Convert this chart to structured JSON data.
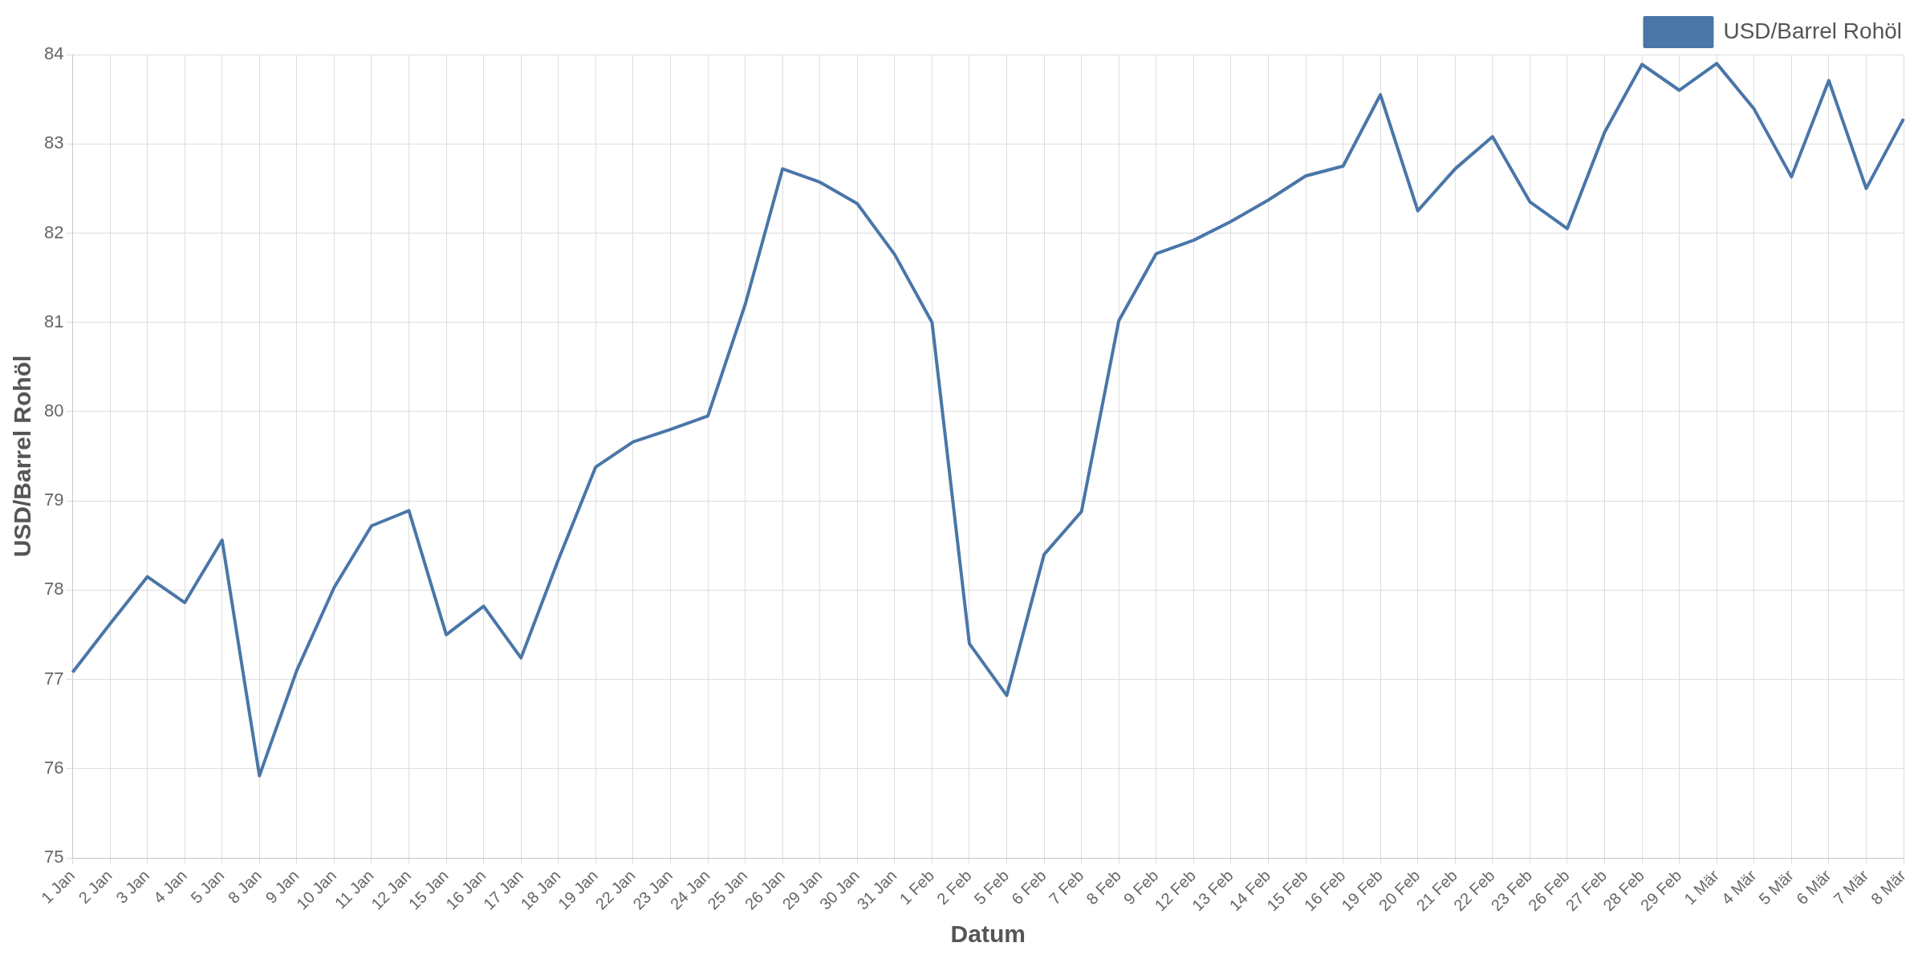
{
  "chart_data": {
    "type": "line",
    "xlabel": "Datum",
    "ylabel": "USD/Barrel Rohöl",
    "categories": [
      "1 Jan",
      "2 Jan",
      "3 Jan",
      "4 Jan",
      "5 Jan",
      "8 Jan",
      "9 Jan",
      "10 Jan",
      "11 Jan",
      "12 Jan",
      "15 Jan",
      "16 Jan",
      "17 Jan",
      "18 Jan",
      "19 Jan",
      "22 Jan",
      "23 Jan",
      "24 Jan",
      "25 Jan",
      "26 Jan",
      "29 Jan",
      "30 Jan",
      "31 Jan",
      "1 Feb",
      "2 Feb",
      "5 Feb",
      "6 Feb",
      "7 Feb",
      "8 Feb",
      "9 Feb",
      "12 Feb",
      "13 Feb",
      "14 Feb",
      "15 Feb",
      "16 Feb",
      "19 Feb",
      "20 Feb",
      "21 Feb",
      "22 Feb",
      "23 Feb",
      "26 Feb",
      "27 Feb",
      "28 Feb",
      "29 Feb",
      "1 Mär",
      "4 Mär",
      "5 Mär",
      "6 Mär",
      "7 Mär",
      "8 Mär"
    ],
    "series": [
      {
        "name": "USD/Barrel Rohöl",
        "color": "#4a76a8",
        "values": [
          77.08,
          77.62,
          78.15,
          77.86,
          78.56,
          75.92,
          77.1,
          78.03,
          78.72,
          78.89,
          77.5,
          77.82,
          77.24,
          78.34,
          79.38,
          79.66,
          79.8,
          79.95,
          81.2,
          82.72,
          82.57,
          82.33,
          81.76,
          81.0,
          77.4,
          76.82,
          78.4,
          78.88,
          81.02,
          81.77,
          81.92,
          82.13,
          82.37,
          82.64,
          82.75,
          83.55,
          82.25,
          82.72,
          83.08,
          82.35,
          82.05,
          83.13,
          83.89,
          83.6,
          83.9,
          83.39,
          82.63,
          83.71,
          82.5,
          83.28
        ]
      }
    ],
    "ylim": [
      75,
      84
    ],
    "yticks": [
      75,
      76,
      77,
      78,
      79,
      80,
      81,
      82,
      83,
      84
    ],
    "grid": true,
    "legend": "top right",
    "marker": "none"
  }
}
